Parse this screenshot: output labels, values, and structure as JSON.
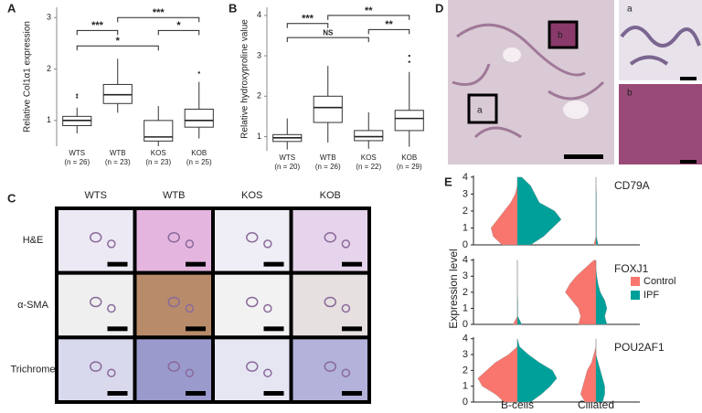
{
  "panel_labels": [
    "A",
    "B",
    "C",
    "D",
    "E"
  ],
  "chart_data": [
    {
      "type": "box",
      "ylabel": "Relative Col1α1 expression",
      "categories": [
        "WTS",
        "WTB",
        "KOS",
        "KOB"
      ],
      "sample_sizes": [
        "(n = 26)",
        "(n = 23)",
        "(n = 23)",
        "(n = 25)"
      ],
      "ylim": [
        0.5,
        3.2
      ],
      "yticks": [
        1,
        2,
        3
      ],
      "boxes": [
        {
          "min": 0.75,
          "q1": 0.9,
          "median": 1.0,
          "q3": 1.08,
          "max": 1.25,
          "outliers": [
            1.45,
            1.5
          ]
        },
        {
          "min": 1.15,
          "q1": 1.33,
          "median": 1.5,
          "q3": 1.7,
          "max": 2.2,
          "outliers": []
        },
        {
          "min": 0.5,
          "q1": 0.6,
          "median": 0.68,
          "q3": 1.0,
          "max": 1.28,
          "outliers": []
        },
        {
          "min": 0.65,
          "q1": 0.87,
          "median": 1.0,
          "q3": 1.22,
          "max": 1.75,
          "outliers": [
            1.93
          ]
        }
      ],
      "significance": [
        {
          "label": "***",
          "between": [
            "WTS",
            "WTB"
          ],
          "y": 2.75
        },
        {
          "label": "*",
          "between": [
            "WTS",
            "KOS"
          ],
          "y": 2.45
        },
        {
          "label": "***",
          "between": [
            "WTB",
            "KOB"
          ],
          "y": 3.0
        },
        {
          "label": "*",
          "between": [
            "KOS",
            "KOB"
          ],
          "y": 2.75
        }
      ]
    },
    {
      "type": "box",
      "ylabel": "Relative hydroxyproline value",
      "categories": [
        "WTS",
        "WTB",
        "KOS",
        "KOB"
      ],
      "sample_sizes": [
        "(n = 20)",
        "(n = 26)",
        "(n = 22)",
        "(n = 29)"
      ],
      "ylim": [
        0.65,
        4.2
      ],
      "yticks": [
        1,
        2,
        3,
        4
      ],
      "boxes": [
        {
          "min": 0.68,
          "q1": 0.88,
          "median": 0.97,
          "q3": 1.05,
          "max": 1.45,
          "outliers": []
        },
        {
          "min": 0.85,
          "q1": 1.35,
          "median": 1.72,
          "q3": 2.0,
          "max": 2.75,
          "outliers": []
        },
        {
          "min": 0.7,
          "q1": 0.9,
          "median": 1.0,
          "q3": 1.15,
          "max": 1.6,
          "outliers": []
        },
        {
          "min": 0.75,
          "q1": 1.15,
          "median": 1.45,
          "q3": 1.65,
          "max": 2.6,
          "outliers": [
            2.85,
            3.0
          ]
        }
      ],
      "significance": [
        {
          "label": "***",
          "between": [
            "WTS",
            "WTB"
          ],
          "y": 3.8
        },
        {
          "label": "NS",
          "between": [
            "WTS",
            "KOS"
          ],
          "y": 3.45
        },
        {
          "label": "**",
          "between": [
            "WTB",
            "KOB"
          ],
          "y": 4.0
        },
        {
          "label": "**",
          "between": [
            "KOS",
            "KOB"
          ],
          "y": 3.65
        }
      ]
    },
    {
      "type": "violin",
      "ylabel": "Expression level",
      "categories": [
        "B-cells",
        "Ciliated"
      ],
      "series": [
        {
          "name": "Control",
          "color": "#f8766d"
        },
        {
          "name": "IPF",
          "color": "#00a09a"
        }
      ],
      "ylim": [
        0,
        4.1
      ],
      "yticks": [
        0,
        1,
        2,
        3,
        4
      ],
      "legend": "right",
      "levels": [
        0,
        0.5,
        1,
        1.5,
        2,
        2.5,
        3,
        3.5,
        4
      ],
      "rows": [
        {
          "gene": "CD79A",
          "density": [
            [
              [
                0.35,
                0.55,
                0.6,
                0.45,
                0.3,
                0.15,
                0.05,
                0,
                0
              ],
              [
                0.3,
                0.6,
                0.8,
                1.0,
                0.85,
                0.5,
                0.4,
                0.3,
                0.1
              ]
            ],
            [
              [
                0.05,
                0,
                0,
                0,
                0,
                0,
                0,
                0,
                0
              ],
              [
                0.05,
                0.01,
                0.01,
                0.01,
                0.01,
                0.01,
                0.01,
                0,
                0
              ]
            ]
          ]
        },
        {
          "gene": "FOXJ1",
          "density": [
            [
              [
                0.1,
                0,
                0,
                0,
                0,
                0,
                0,
                0,
                0
              ],
              [
                0.1,
                0.01,
                0.01,
                0.01,
                0,
                0,
                0,
                0,
                0
              ]
            ],
            [
              [
                0.4,
                0.35,
                0.4,
                0.55,
                0.7,
                0.6,
                0.45,
                0.25,
                0.05
              ],
              [
                0.25,
                0.2,
                0.25,
                0.2,
                0.1,
                0.05,
                0.02,
                0,
                0
              ]
            ]
          ]
        },
        {
          "gene": "POU2AF1",
          "density": [
            [
              [
                0.3,
                0.5,
                0.8,
                0.9,
                0.7,
                0.5,
                0.2,
                0,
                0
              ],
              [
                0.3,
                0.55,
                0.75,
                0.9,
                0.8,
                0.5,
                0.25,
                0.05,
                0
              ]
            ],
            [
              [
                0.25,
                0.35,
                0.3,
                0.25,
                0.2,
                0.1,
                0.05,
                0,
                0
              ],
              [
                0.15,
                0.2,
                0.2,
                0.15,
                0.1,
                0.05,
                0,
                0,
                0
              ]
            ]
          ]
        }
      ]
    }
  ],
  "panel_c": {
    "columns": [
      "WTS",
      "WTB",
      "KOS",
      "KOB"
    ],
    "rows": [
      "H&E",
      "α-SMA",
      "Trichrome"
    ]
  },
  "panel_d": {
    "insets": [
      "a",
      "b"
    ]
  }
}
